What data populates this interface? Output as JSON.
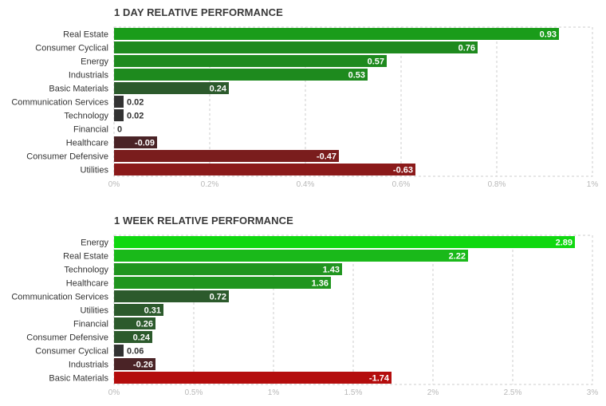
{
  "chart_data": [
    {
      "type": "bar",
      "orientation": "horizontal",
      "title": "1 DAY RELATIVE PERFORMANCE",
      "categories": [
        "Real Estate",
        "Consumer Cyclical",
        "Energy",
        "Industrials",
        "Basic Materials",
        "Communication Services",
        "Technology",
        "Financial",
        "Healthcare",
        "Consumer Defensive",
        "Utilities"
      ],
      "values": [
        0.93,
        0.76,
        0.57,
        0.53,
        0.24,
        0.02,
        0.02,
        0,
        -0.09,
        -0.47,
        -0.63
      ],
      "value_labels": [
        "0.93",
        "0.76",
        "0.57",
        "0.53",
        "0.24",
        "0.02",
        "0.02",
        "0",
        "-0.09",
        "-0.47",
        "-0.63"
      ],
      "xlim": [
        0,
        1
      ],
      "xticks": [
        "0%",
        "0.2%",
        "0.4%",
        "0.6%",
        "0.8%",
        "1%"
      ],
      "grid": true,
      "bar_length": "absolute value",
      "colors": {
        "positive_strong": "#1a9c1a",
        "positive_mid": "#1e8a1e",
        "positive_weak": "#2c5a2c",
        "neutral": "#333333",
        "negative_weak": "#4a2326",
        "negative_mid": "#7a1d1d",
        "negative_strong": "#8b1a1a"
      }
    },
    {
      "type": "bar",
      "orientation": "horizontal",
      "title": "1 WEEK RELATIVE PERFORMANCE",
      "categories": [
        "Energy",
        "Real Estate",
        "Technology",
        "Healthcare",
        "Communication Services",
        "Utilities",
        "Financial",
        "Consumer Defensive",
        "Consumer Cyclical",
        "Industrials",
        "Basic Materials"
      ],
      "values": [
        2.89,
        2.22,
        1.43,
        1.36,
        0.72,
        0.31,
        0.26,
        0.24,
        0.06,
        -0.26,
        -1.74
      ],
      "value_labels": [
        "2.89",
        "2.22",
        "1.43",
        "1.36",
        "0.72",
        "0.31",
        "0.26",
        "0.24",
        "0.06",
        "-0.26",
        "-1.74"
      ],
      "xlim": [
        0,
        3
      ],
      "xticks": [
        "0%",
        "0.5%",
        "1%",
        "1.5%",
        "2%",
        "2.5%",
        "3%"
      ],
      "grid": true,
      "bar_length": "absolute value",
      "colors": {
        "positive_max": "#10d810",
        "positive_strong": "#1ab91a",
        "positive_mid": "#20951f",
        "positive_weak": "#2c5a2c",
        "neutral": "#333333",
        "negative_weak": "#4a2326",
        "negative_strong": "#b40d0d"
      }
    }
  ]
}
